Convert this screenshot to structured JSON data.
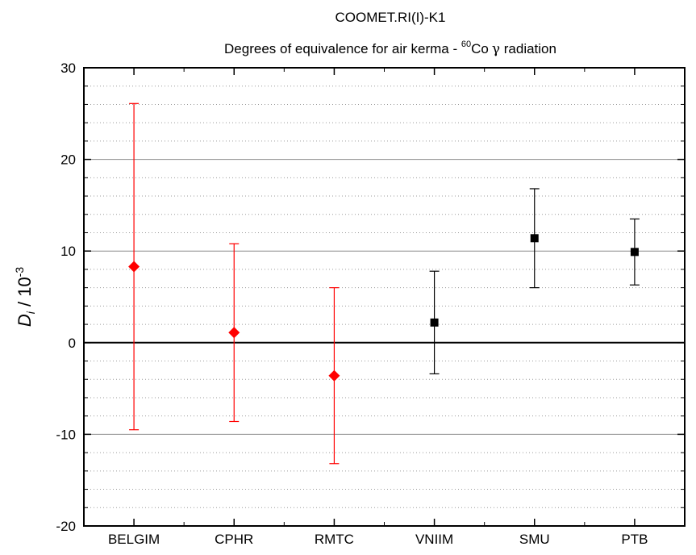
{
  "chart_data": {
    "type": "scatter",
    "title": "COOMET.RI(I)-K1",
    "subtitle_prefix": "Degrees of equivalence for air kerma - ",
    "subtitle_isotope_mass": "60",
    "subtitle_element": "Co",
    "subtitle_symbol": "γ",
    "subtitle_suffix": " radiation",
    "ylabel_var": "D",
    "ylabel_sub": "i",
    "ylabel_mid": " / 10",
    "ylabel_exp": "-3",
    "ylim": [
      -20,
      30
    ],
    "yticks": [
      "-20",
      "-10",
      "0",
      "10",
      "20",
      "30"
    ],
    "grid": true,
    "categories": [
      "BELGIM",
      "CPHR",
      "RMTC",
      "VNIIM",
      "SMU",
      "PTB"
    ],
    "points": [
      {
        "label": "BELGIM",
        "value": 8.3,
        "err_low": -9.5,
        "err_high": 26.1,
        "marker": "diamond",
        "color": "#ff0000"
      },
      {
        "label": "CPHR",
        "value": 1.1,
        "err_low": -8.6,
        "err_high": 10.8,
        "marker": "diamond",
        "color": "#ff0000"
      },
      {
        "label": "RMTC",
        "value": -3.6,
        "err_low": -13.2,
        "err_high": 6.0,
        "marker": "diamond",
        "color": "#ff0000"
      },
      {
        "label": "VNIIM",
        "value": 2.2,
        "err_low": -3.4,
        "err_high": 7.8,
        "marker": "square",
        "color": "#000000"
      },
      {
        "label": "SMU",
        "value": 11.4,
        "err_low": 6.0,
        "err_high": 16.8,
        "marker": "square",
        "color": "#000000"
      },
      {
        "label": "PTB",
        "value": 9.9,
        "err_low": 6.3,
        "err_high": 13.5,
        "marker": "square",
        "color": "#000000"
      }
    ]
  }
}
